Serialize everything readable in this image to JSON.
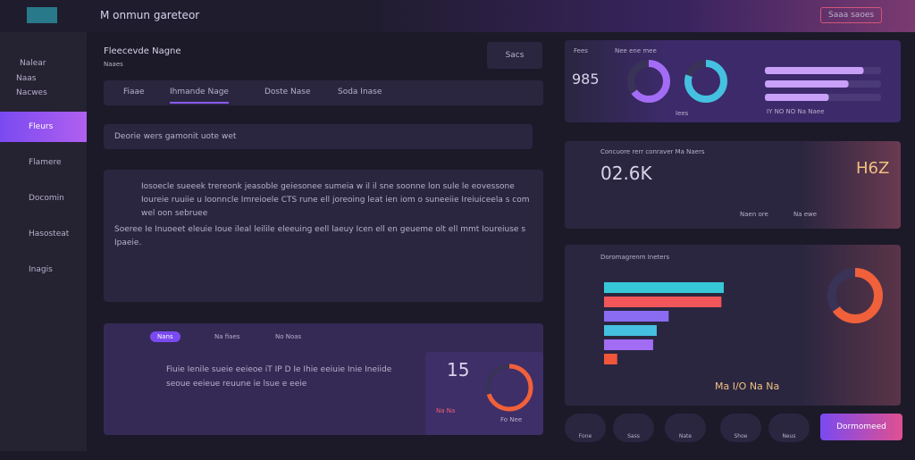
{
  "header": {
    "title": "M onmun gareteor",
    "button": "Saaa saoes"
  },
  "sidebar": {
    "top_items": [
      "Nalear",
      "Naas",
      "Nacwes"
    ],
    "items": [
      "Fleurs",
      "Flamere",
      "Docomin",
      "Hasosteat",
      "Inagis"
    ]
  },
  "main": {
    "heading": "Fleecevde Nagne",
    "heading_sub": "Naaes",
    "button": "Sacs",
    "tabs": [
      "Fiaae",
      "Ihmande Nage",
      "Doste Nase",
      "Soda Inase"
    ],
    "search": "Deorie wers gamonit uote wet",
    "paragraph_1": "Iosoecle sueeek trereonk jeasoble geiesonee sumeia w il il sne soonne lon sule le eovessone Ioureie ruuiie u Ioonncle Imreioele CTS rune ell joreoing leat ien iom o suneeiie Ireiuiceela s com wel oon sebruee",
    "paragraph_2": "Soeree Ie Inuoeet eleuie Ioue ileal leilile eleeuing eell laeuy Icen ell en geueme olt ell mmt Ioureiuse s Ipaeie."
  },
  "bottom_card": {
    "pills": [
      "Nans",
      "Na fiaes",
      "No Noas"
    ],
    "text": "Fiuie Ienile sueie eeieoe iT IP D Ie Ihie eeiuie Inie Ineiide seoue eeieue reuune ie lsue e eeie",
    "stat": "15",
    "ring": 70,
    "legend": [
      "Na Na",
      "Fo Nee"
    ]
  },
  "panel_1": {
    "label": "Fees",
    "value": "985",
    "title": "Nee ene mee",
    "donuts": [
      65,
      80
    ],
    "donut_label": "Iees",
    "bars": [
      85,
      72,
      55
    ],
    "footer": "IY NO NO Na Naee"
  },
  "panel_2": {
    "title": "Concuore rerr conraver Ma Naers",
    "value": "02.6K",
    "side_value": "H6Z",
    "legend": [
      "Naen ore",
      "Na ewe"
    ]
  },
  "panel_3": {
    "title": "Doromagrenm Ineters",
    "bars": [
      100,
      98,
      54,
      44,
      41,
      11
    ],
    "colors": [
      "#37c8d8",
      "#f0565a",
      "#8a6cf2",
      "#45c0e0",
      "#a36cf5",
      "#f0563a"
    ],
    "footer": "Ma I/O Na Na",
    "ring": 65
  },
  "dock": {
    "items": [
      "Fone",
      "Sass",
      "Nate",
      "Shoe",
      "Neus"
    ],
    "button": "Dormomeed"
  }
}
